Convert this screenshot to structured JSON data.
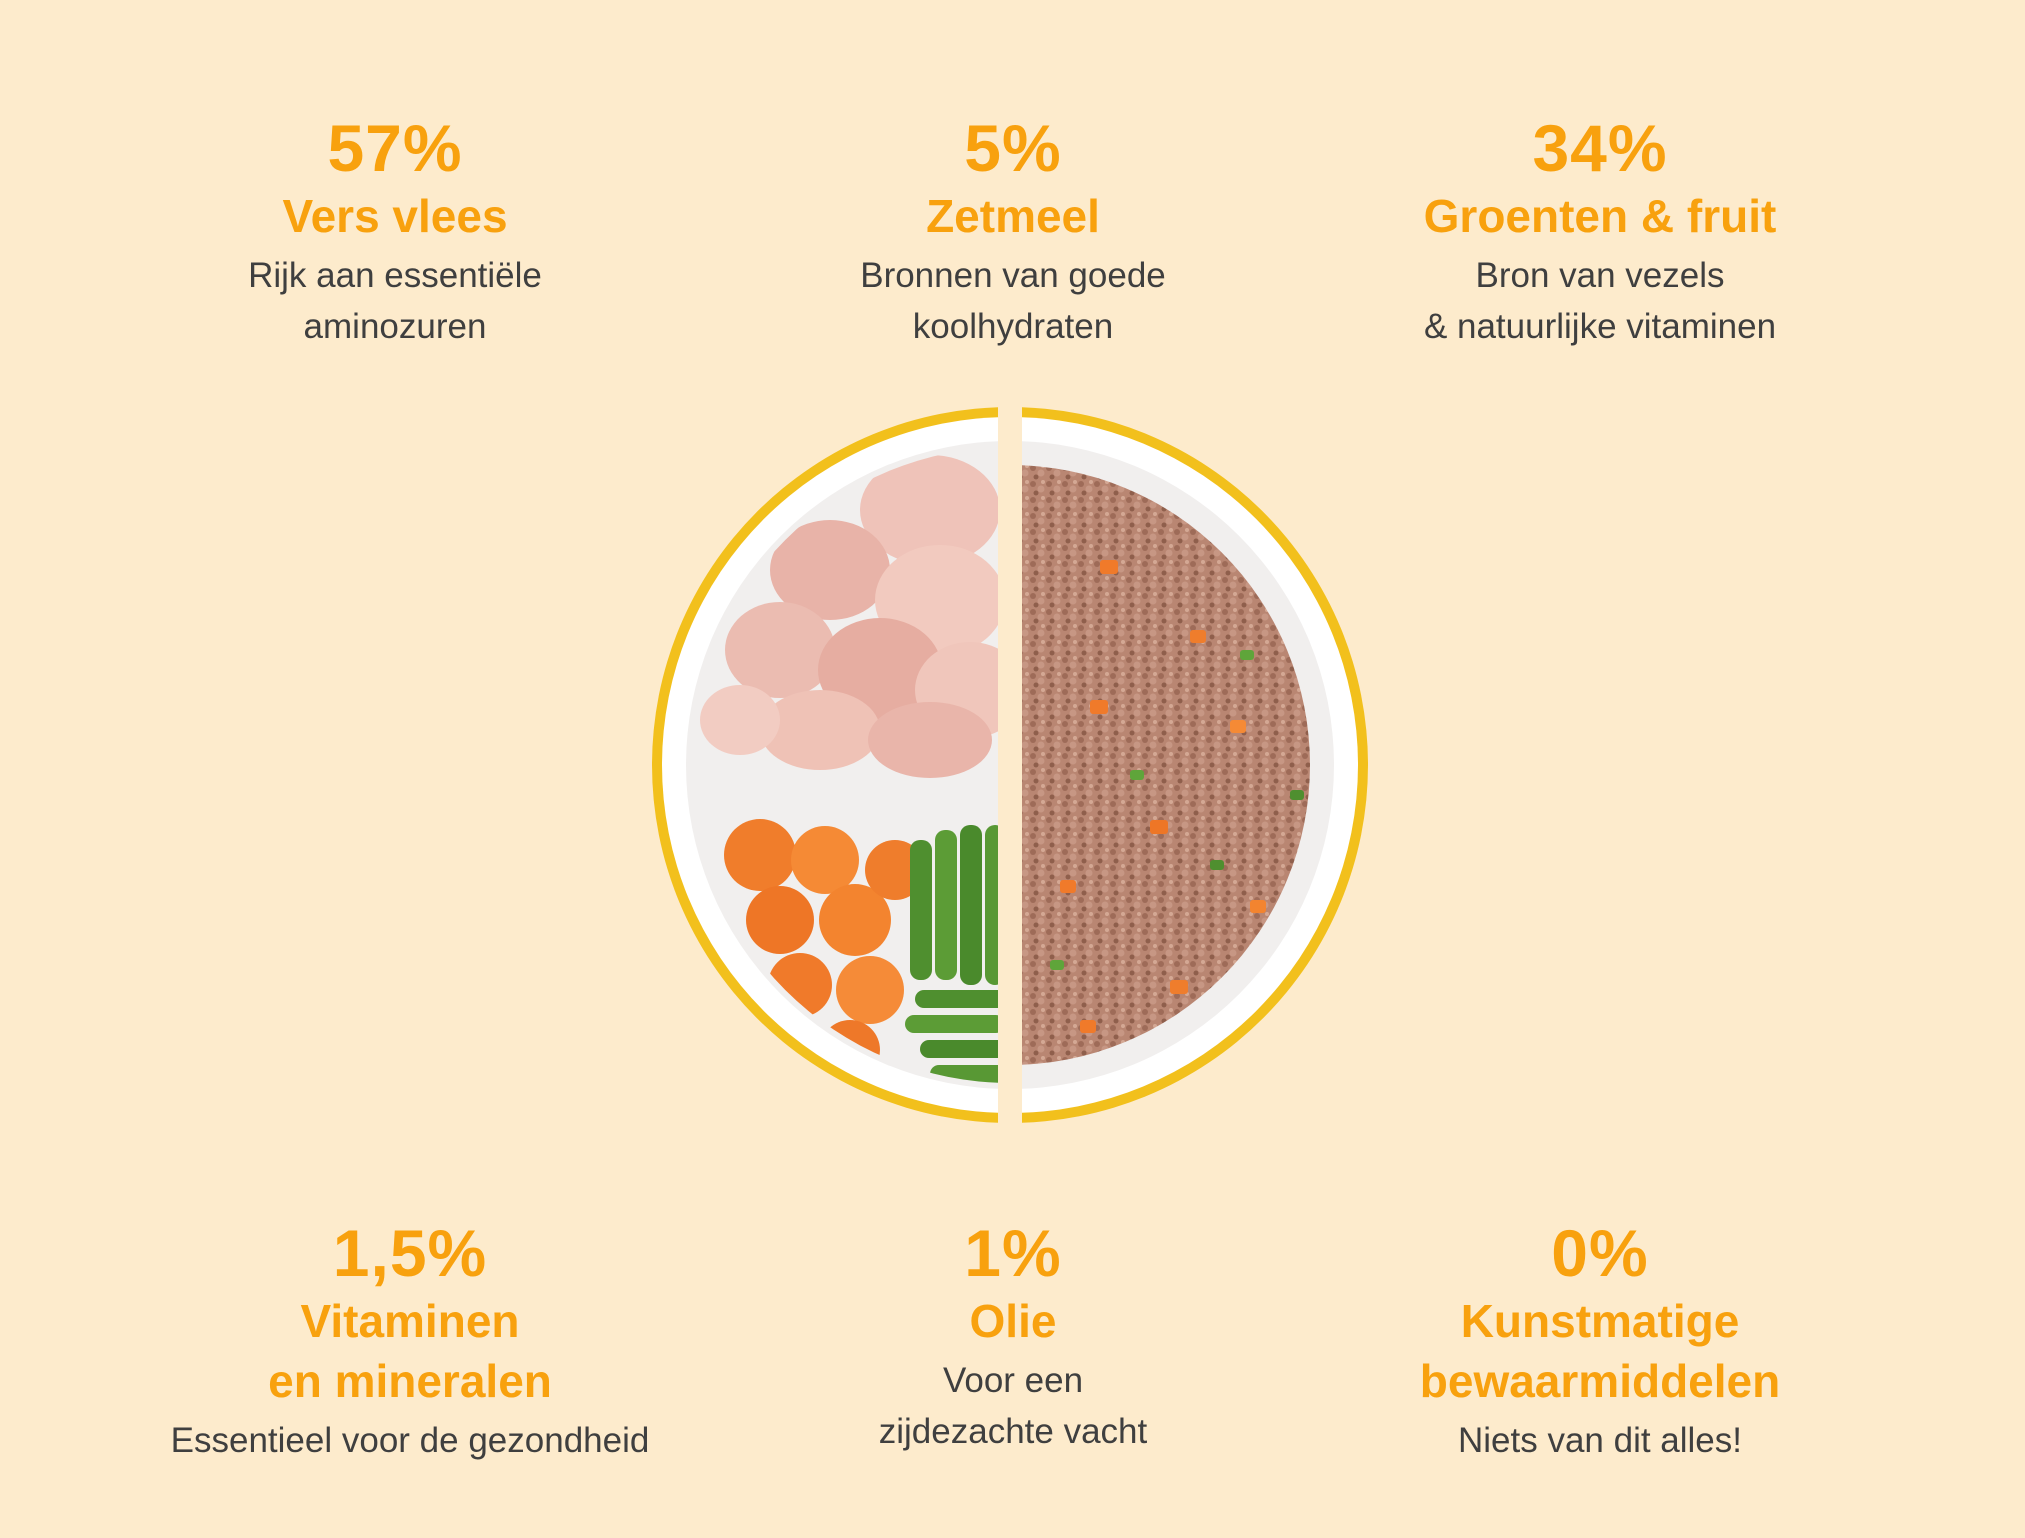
{
  "stats": [
    {
      "percent": "57%",
      "title": "Vers vlees",
      "desc1": "Rijk aan essentiële",
      "desc2": "aminozuren"
    },
    {
      "percent": "5%",
      "title": "Zetmeel",
      "desc1": "Bronnen van goede",
      "desc2": "koolhydraten"
    },
    {
      "percent": "34%",
      "title": "Groenten & fruit",
      "desc1": "Bron van vezels",
      "desc2": "& natuurlijke vitaminen"
    },
    {
      "percent": "1,5%",
      "title1": "Vitaminen",
      "title2": "en mineralen",
      "desc1": "Essentieel voor de gezondheid"
    },
    {
      "percent": "1%",
      "title": "Olie",
      "desc1": "Voor een",
      "desc2": "zijdezachte vacht"
    },
    {
      "percent": "0%",
      "title1": "Kunstmatige",
      "title2": "bewaarmiddelen",
      "desc1": "Niets van dit alles!"
    }
  ],
  "colors": {
    "background": "#fdebcc",
    "accent": "#f8a10e",
    "text": "#3f3f3f",
    "bowl_rim": "#f4c21a"
  },
  "image": {
    "icon": "food-bowl-illustration"
  }
}
